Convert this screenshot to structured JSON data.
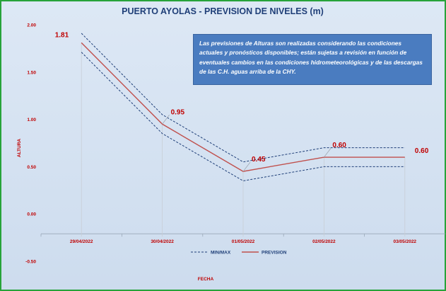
{
  "chart_data": {
    "type": "line",
    "title": "PUERTO AYOLAS - PREVISION DE NIVELES (m)",
    "xlabel": "FECHA",
    "ylabel": "ALTURA",
    "categories": [
      "29/04/2022",
      "30/04/2022",
      "01/05/2022",
      "02/05/2022",
      "03/05/2022"
    ],
    "ylim": [
      -0.5,
      2.0
    ],
    "yticks": [
      "2.00",
      "1.50",
      "1.00",
      "0.50",
      "0.00",
      "-0.50"
    ],
    "series": [
      {
        "name": "PREVISION",
        "values": [
          1.81,
          0.95,
          0.45,
          0.6,
          0.6
        ],
        "color": "#c0504d"
      },
      {
        "name": "MIN/MAX",
        "values": [
          1.91,
          1.05,
          0.55,
          0.7,
          0.7
        ],
        "color": "#1f3f78"
      },
      {
        "name": "MIN/MAX",
        "values": [
          1.71,
          0.85,
          0.35,
          0.5,
          0.5
        ],
        "color": "#1f3f78"
      }
    ],
    "data_labels": [
      "1.81",
      "0.95",
      "0.45",
      "0.60",
      "0.60"
    ],
    "legend": {
      "position": "bottom",
      "entries": [
        "MIN/MAX",
        "PREVISION"
      ]
    },
    "annotation": "Las previsiones de Alturas son realizadas considerando las condiciones actuales y pronósticos disponibles;  están sujetas a revisión en función de eventuales cambios en las condiciones hidrometeorológicas y de las descargas de las C.H. aguas arriba de la CHY."
  }
}
